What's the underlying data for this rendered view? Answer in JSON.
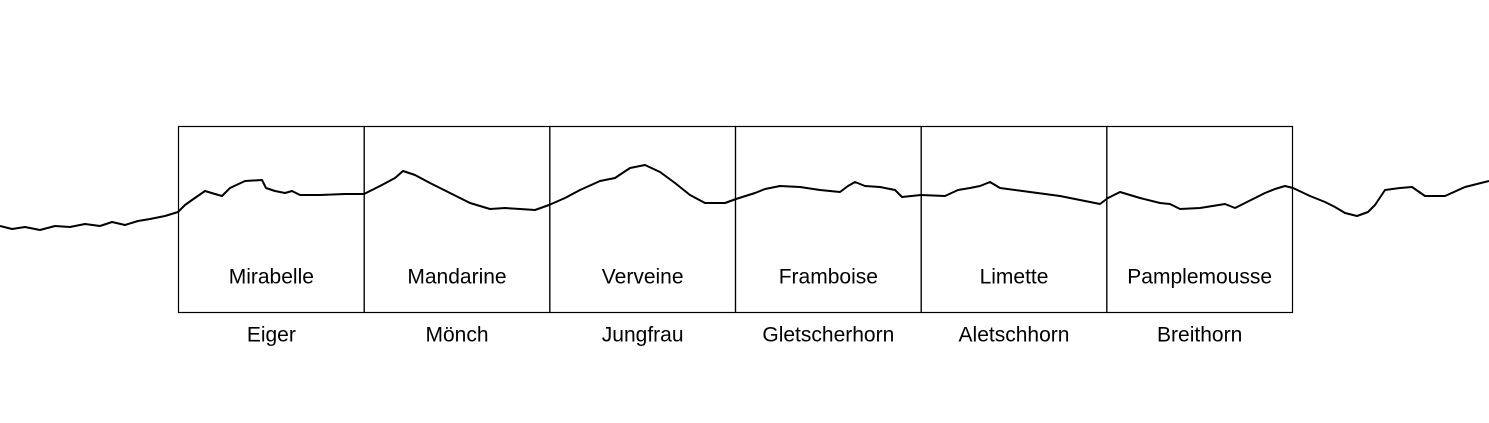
{
  "boxes": [
    {
      "label": "Mirabelle",
      "caption": "Eiger"
    },
    {
      "label": "Mandarine",
      "caption": "Mönch"
    },
    {
      "label": "Verveine",
      "caption": "Jungfrau"
    },
    {
      "label": "Framboise",
      "caption": "Gletscherhorn"
    },
    {
      "label": "Limette",
      "caption": "Aletschhorn"
    },
    {
      "label": "Pamplemousse",
      "caption": "Breithorn"
    }
  ]
}
